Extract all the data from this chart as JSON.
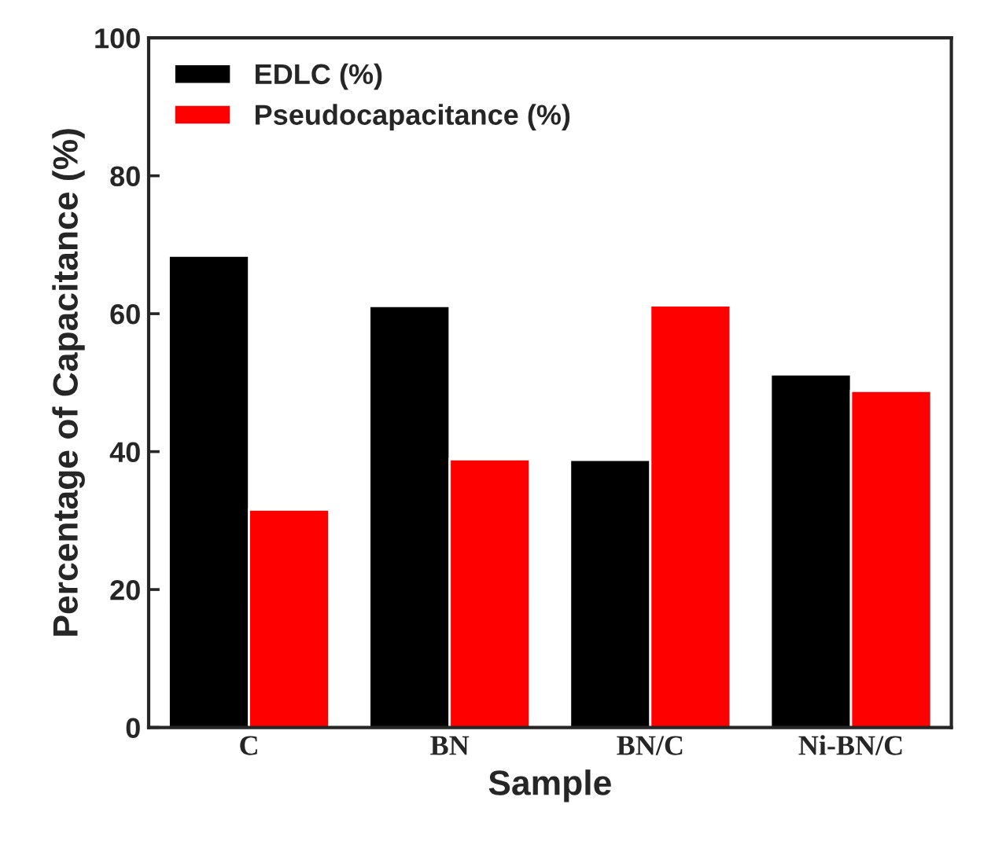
{
  "chart_data": {
    "type": "bar",
    "xlabel": "Sample",
    "ylabel": "Percentage of Capacitance (%)",
    "categories": [
      "C",
      "BN",
      "BN/C",
      "Ni-BN/C"
    ],
    "series": [
      {
        "name": "EDLC (%)",
        "color": "#000000",
        "values": [
          68.4,
          61.1,
          38.8,
          51.2
        ]
      },
      {
        "name": "Pseudocapacitance (%)",
        "color": "#ff0000",
        "values": [
          31.6,
          38.9,
          61.2,
          48.8
        ]
      }
    ],
    "ylim": [
      0,
      100
    ],
    "yticks": [
      0,
      20,
      40,
      60,
      80,
      100
    ],
    "grid": false,
    "legend": "top left"
  }
}
